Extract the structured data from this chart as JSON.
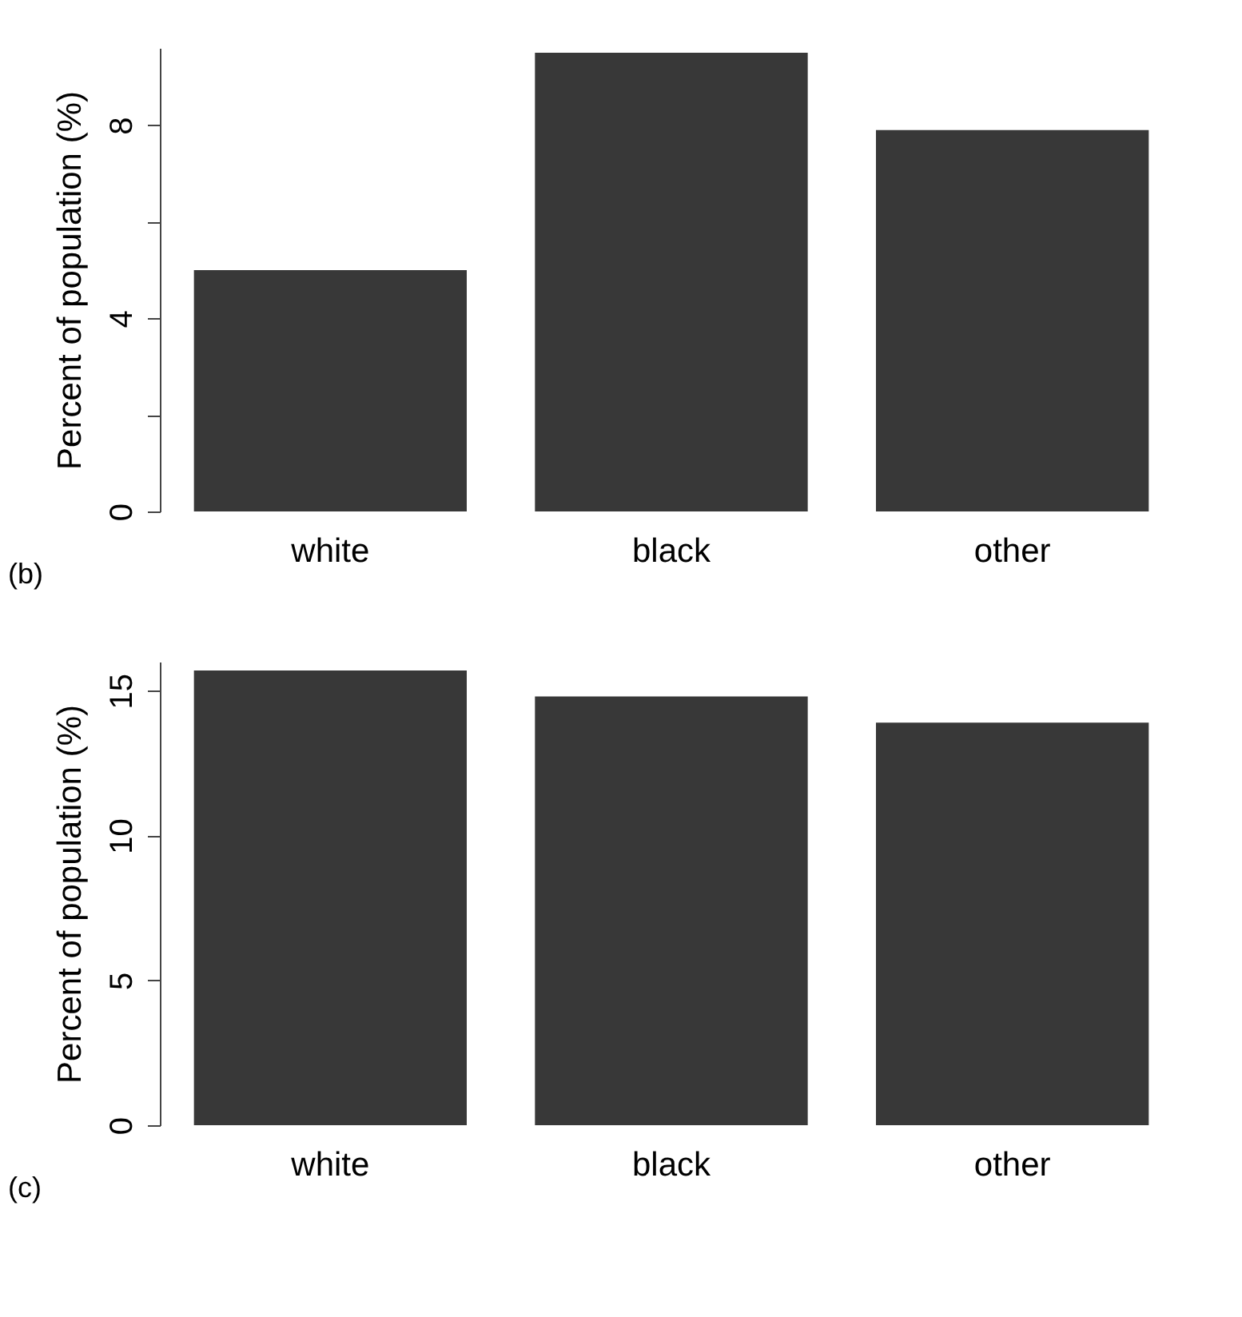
{
  "chart_data": [
    {
      "type": "bar",
      "categories": [
        "white",
        "black",
        "other"
      ],
      "values": [
        5.0,
        9.5,
        7.9
      ],
      "color": "#383838",
      "ylabel": "Percent of population (%)",
      "ylim": [
        0,
        9.6
      ],
      "yticks": [
        0,
        {
          "value": 2,
          "label": null
        },
        4,
        {
          "value": 6,
          "label": null
        },
        8
      ],
      "annotations": [
        "(b)"
      ],
      "grid": false
    },
    {
      "type": "bar",
      "categories": [
        "white",
        "black",
        "other"
      ],
      "values": [
        15.7,
        14.8,
        13.9
      ],
      "color": "#383838",
      "ylabel": "Percent of population (%)",
      "ylim": [
        0,
        16
      ],
      "yticks": [
        0,
        5,
        10,
        15
      ],
      "annotations": [
        "(c)"
      ],
      "grid": false
    }
  ]
}
